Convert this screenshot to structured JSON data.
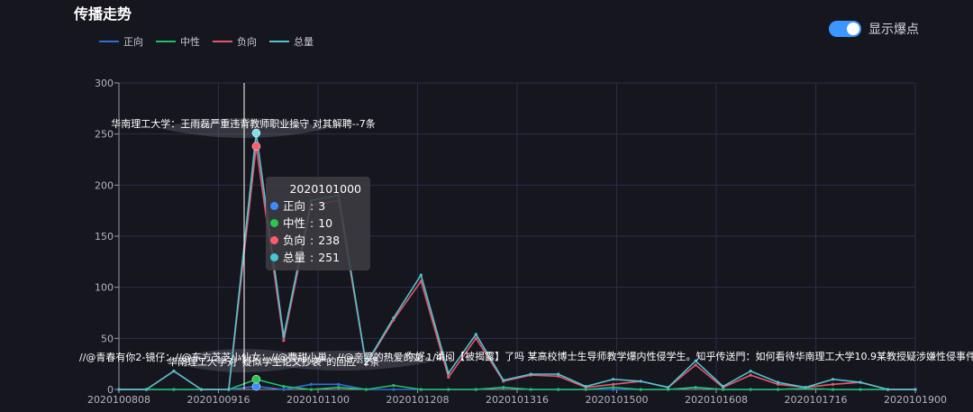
{
  "page_title": "传播走势",
  "toggle": {
    "label": "显示爆点",
    "on": true
  },
  "colors": {
    "positive": "#2f6fd6",
    "neutral": "#1fc26a",
    "negative": "#e8566c",
    "total": "#4fc4cf"
  },
  "tooltip": {
    "title": "2020101000",
    "rows": [
      {
        "name": "正向",
        "value": "3",
        "color": "#3c8cff"
      },
      {
        "name": "中性",
        "value": "10",
        "color": "#28c850"
      },
      {
        "name": "负向",
        "value": "238",
        "color": "#ff5a6e"
      },
      {
        "name": "总量",
        "value": "251",
        "color": "#48c8d0"
      }
    ]
  },
  "annotations": {
    "peak": "华南理工大学：王雨磊严重违背教师职业操守 对其解聘--7条",
    "bottom_a": "//@青春有你2-镜仔：//@东方芝芝小仙女：//@曹甜小巢：//@亲爱的热爱的龙 1/4 :。",
    "bottom_b": "华南理工大学对“疑似学生论文抄袭”的回应--2条",
    "bottom_c": "你好。请问【被揭露】了吗 某高校博士生导师教学爆内性侵学生。知乎传送門：如何看待华南理工大学10.9某教授疑涉嫌性侵事件？ 查看"
  },
  "chart_data": {
    "type": "line",
    "title": "",
    "xlabel": "",
    "ylabel": "",
    "ylim": [
      0,
      300
    ],
    "yticks": [
      0,
      50,
      100,
      150,
      200,
      250,
      300
    ],
    "x_tick_labels": [
      "2020100808",
      "2020100916",
      "2020101100",
      "2020101208",
      "2020101316",
      "2020101500",
      "2020101608",
      "2020101716",
      "2020101900"
    ],
    "series": [
      {
        "name": "正向",
        "values": [
          0,
          0,
          0,
          0,
          0,
          3,
          0,
          5,
          5,
          0,
          0,
          0,
          0,
          0,
          2,
          0,
          0,
          0,
          0,
          0,
          0,
          2,
          0,
          0,
          0,
          1,
          0,
          0,
          0,
          0
        ]
      },
      {
        "name": "中性",
        "values": [
          0,
          0,
          0,
          0,
          0,
          10,
          3,
          0,
          2,
          0,
          4,
          0,
          0,
          0,
          2,
          0,
          0,
          0,
          2,
          0,
          0,
          2,
          0,
          0,
          0,
          1,
          0,
          0,
          0,
          0
        ]
      },
      {
        "name": "负向",
        "values": [
          0,
          0,
          18,
          0,
          0,
          238,
          48,
          180,
          185,
          24,
          68,
          106,
          12,
          50,
          8,
          14,
          13,
          2,
          5,
          8,
          2,
          24,
          2,
          14,
          5,
          2,
          5,
          7,
          0,
          0
        ]
      },
      {
        "name": "总量",
        "values": [
          0,
          0,
          18,
          0,
          0,
          251,
          52,
          185,
          190,
          25,
          70,
          112,
          16,
          54,
          9,
          15,
          15,
          3,
          10,
          8,
          2,
          28,
          3,
          18,
          7,
          2,
          10,
          7,
          0,
          0
        ]
      }
    ],
    "grid": true,
    "legend_position": "top-left",
    "tooltip_index": 5
  }
}
